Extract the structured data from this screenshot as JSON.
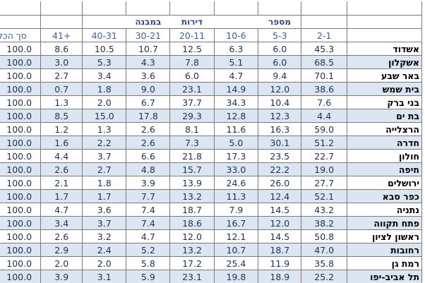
{
  "table": {
    "super_header": [
      "במבנה",
      "דירות",
      "מספר"
    ],
    "columns": [
      "סך הכל",
      "41+",
      "40-31",
      "30-21",
      "20-11",
      "10-6",
      "5-3",
      "2-1"
    ],
    "rows": [
      {
        "city": "אשדוד",
        "values": [
          "100.0",
          "8.6",
          "10.5",
          "10.7",
          "12.5",
          "6.3",
          "6.0",
          "45.3"
        ]
      },
      {
        "city": "אשקלון",
        "values": [
          "100.0",
          "3.0",
          "5.3",
          "4.3",
          "7.8",
          "5.1",
          "6.0",
          "68.5"
        ]
      },
      {
        "city": "באר שבע",
        "values": [
          "100.0",
          "2.7",
          "3.4",
          "3.6",
          "6.0",
          "4.7",
          "9.4",
          "70.1"
        ]
      },
      {
        "city": "בית שמש",
        "values": [
          "100.0",
          "0.7",
          "1.8",
          "9.0",
          "23.1",
          "14.9",
          "12.0",
          "38.6"
        ]
      },
      {
        "city": "בני ברק",
        "values": [
          "100.0",
          "1.3",
          "2.0",
          "6.7",
          "37.7",
          "34.3",
          "10.4",
          "7.6"
        ]
      },
      {
        "city": "בת ים",
        "values": [
          "100.0",
          "8.5",
          "15.0",
          "17.8",
          "29.3",
          "12.8",
          "12.3",
          "4.4"
        ]
      },
      {
        "city": "הרצלייה",
        "values": [
          "100.0",
          "1.2",
          "1.3",
          "2.6",
          "8.1",
          "11.6",
          "16.3",
          "59.0"
        ]
      },
      {
        "city": "חדרה",
        "values": [
          "100.0",
          "1.6",
          "2.2",
          "2.6",
          "7.3",
          "5.0",
          "30.1",
          "51.2"
        ]
      },
      {
        "city": "חולון",
        "values": [
          "100.0",
          "4.4",
          "3.7",
          "6.6",
          "21.8",
          "17.3",
          "23.5",
          "22.7"
        ]
      },
      {
        "city": "חיפה",
        "values": [
          "100.0",
          "2.6",
          "2.7",
          "4.8",
          "15.7",
          "33.0",
          "22.2",
          "19.0"
        ]
      },
      {
        "city": "ירושלים",
        "values": [
          "100.0",
          "2.1",
          "1.8",
          "3.9",
          "13.9",
          "24.6",
          "26.0",
          "27.7"
        ]
      },
      {
        "city": "כפר סבא",
        "values": [
          "100.0",
          "1.7",
          "1.7",
          "7.7",
          "13.2",
          "11.3",
          "12.4",
          "52.1"
        ]
      },
      {
        "city": "נתניה",
        "values": [
          "100.0",
          "4.7",
          "3.6",
          "7.4",
          "18.7",
          "7.9",
          "14.5",
          "43.2"
        ]
      },
      {
        "city": "פתח תקווה",
        "values": [
          "100.0",
          "3.4",
          "3.7",
          "7.4",
          "18.6",
          "16.7",
          "12.0",
          "38.2"
        ]
      },
      {
        "city": "ראשון לציון",
        "values": [
          "100.0",
          "2.6",
          "3.2",
          "4.7",
          "12.0",
          "12.1",
          "14.5",
          "50.8"
        ]
      },
      {
        "city": "רחובות",
        "values": [
          "100.0",
          "2.9",
          "2.4",
          "5.2",
          "13.2",
          "10.7",
          "18.7",
          "47.0"
        ]
      },
      {
        "city": "רמת גן",
        "values": [
          "100.0",
          "2.0",
          "2.0",
          "5.8",
          "17.2",
          "25.4",
          "11.9",
          "35.8"
        ]
      },
      {
        "city": "תל אביב-יפו",
        "values": [
          "100.0",
          "3.9",
          "3.1",
          "5.9",
          "23.1",
          "19.8",
          "18.9",
          "25.2"
        ]
      }
    ]
  }
}
